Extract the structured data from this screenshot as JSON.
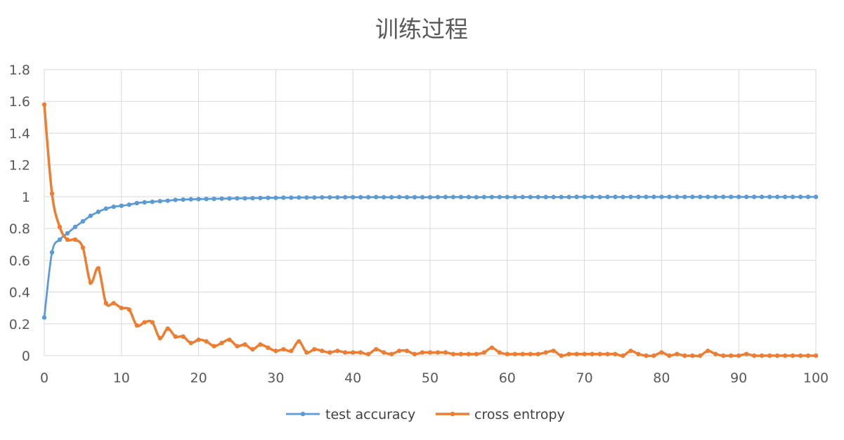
{
  "chart_data": {
    "type": "line",
    "title": "训练过程",
    "xlabel": "",
    "ylabel": "",
    "xlim": [
      0,
      100
    ],
    "ylim": [
      0,
      1.8
    ],
    "x_ticks": [
      0,
      10,
      20,
      30,
      40,
      50,
      60,
      70,
      80,
      90,
      100
    ],
    "x_tick_labels": [
      "0",
      "10",
      "20",
      "30",
      "40",
      "50",
      "60",
      "70",
      "80",
      "90",
      "100"
    ],
    "y_ticks": [
      0,
      0.2,
      0.4,
      0.6,
      0.8,
      1.0,
      1.2,
      1.4,
      1.6,
      1.8
    ],
    "y_tick_labels": [
      "0",
      "0.2",
      "0.4",
      "0.6",
      "0.8",
      "1",
      "1.2",
      "1.4",
      "1.6",
      "1.8"
    ],
    "grid": true,
    "legend_position": "bottom",
    "x": [
      0,
      1,
      2,
      3,
      4,
      5,
      6,
      7,
      8,
      9,
      10,
      11,
      12,
      13,
      14,
      15,
      16,
      17,
      18,
      19,
      20,
      21,
      22,
      23,
      24,
      25,
      26,
      27,
      28,
      29,
      30,
      31,
      32,
      33,
      34,
      35,
      36,
      37,
      38,
      39,
      40,
      41,
      42,
      43,
      44,
      45,
      46,
      47,
      48,
      49,
      50,
      51,
      52,
      53,
      54,
      55,
      56,
      57,
      58,
      59,
      60,
      61,
      62,
      63,
      64,
      65,
      66,
      67,
      68,
      69,
      70,
      71,
      72,
      73,
      74,
      75,
      76,
      77,
      78,
      79,
      80,
      81,
      82,
      83,
      84,
      85,
      86,
      87,
      88,
      89,
      90,
      91,
      92,
      93,
      94,
      95,
      96,
      97,
      98,
      99,
      100
    ],
    "series": [
      {
        "name": "test accuracy",
        "color": "#5b9bd5",
        "values": [
          0.24,
          0.65,
          0.73,
          0.77,
          0.81,
          0.845,
          0.88,
          0.905,
          0.925,
          0.937,
          0.943,
          0.95,
          0.96,
          0.965,
          0.968,
          0.972,
          0.975,
          0.98,
          0.982,
          0.984,
          0.985,
          0.986,
          0.987,
          0.988,
          0.989,
          0.99,
          0.99,
          0.991,
          0.992,
          0.993,
          0.993,
          0.994,
          0.994,
          0.995,
          0.995,
          0.995,
          0.996,
          0.996,
          0.996,
          0.997,
          0.997,
          0.997,
          0.997,
          0.998,
          0.997,
          0.997,
          0.998,
          0.997,
          0.997,
          0.997,
          0.997,
          0.998,
          0.998,
          0.998,
          0.998,
          0.998,
          0.997,
          0.998,
          0.998,
          0.998,
          0.998,
          0.998,
          0.998,
          0.998,
          0.998,
          0.998,
          0.998,
          0.998,
          0.998,
          0.999,
          0.999,
          0.999,
          0.998,
          0.999,
          0.999,
          0.998,
          0.999,
          0.999,
          0.999,
          0.999,
          0.999,
          0.999,
          0.999,
          0.999,
          0.999,
          0.999,
          0.999,
          0.999,
          0.999,
          0.999,
          0.999,
          0.999,
          0.999,
          0.999,
          0.999,
          0.999,
          0.999,
          0.999,
          0.999,
          0.999,
          0.999
        ]
      },
      {
        "name": "cross entropy",
        "color": "#ed7d31",
        "values": [
          1.58,
          1.02,
          0.81,
          0.73,
          0.73,
          0.68,
          0.46,
          0.55,
          0.33,
          0.33,
          0.3,
          0.29,
          0.19,
          0.21,
          0.21,
          0.11,
          0.17,
          0.12,
          0.12,
          0.08,
          0.1,
          0.09,
          0.06,
          0.08,
          0.1,
          0.06,
          0.07,
          0.04,
          0.07,
          0.05,
          0.03,
          0.04,
          0.03,
          0.09,
          0.02,
          0.04,
          0.03,
          0.02,
          0.03,
          0.02,
          0.02,
          0.02,
          0.01,
          0.04,
          0.02,
          0.01,
          0.03,
          0.03,
          0.01,
          0.02,
          0.02,
          0.02,
          0.02,
          0.01,
          0.01,
          0.01,
          0.01,
          0.02,
          0.05,
          0.02,
          0.01,
          0.01,
          0.01,
          0.01,
          0.01,
          0.02,
          0.03,
          0.0,
          0.01,
          0.01,
          0.01,
          0.01,
          0.01,
          0.01,
          0.01,
          0.0,
          0.03,
          0.01,
          0.0,
          0.0,
          0.02,
          0.0,
          0.01,
          0.0,
          0.0,
          0.0,
          0.03,
          0.01,
          0.0,
          0.0,
          0.0,
          0.01,
          0.0,
          0.0,
          0.0,
          0.0,
          0.0,
          0.0,
          0.0,
          0.0,
          0.0
        ]
      }
    ]
  }
}
